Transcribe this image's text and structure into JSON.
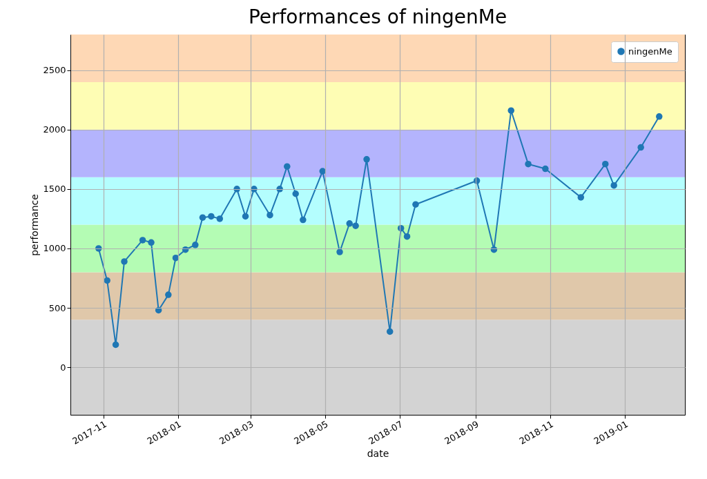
{
  "chart_data": {
    "type": "line",
    "title": "Performances of ningenMe",
    "xlabel": "date",
    "ylabel": "performance",
    "x": [
      "2017-10-28",
      "2017-11-04",
      "2017-11-11",
      "2017-11-18",
      "2017-12-03",
      "2017-12-10",
      "2017-12-16",
      "2017-12-24",
      "2017-12-30",
      "2018-01-07",
      "2018-01-15",
      "2018-01-21",
      "2018-01-28",
      "2018-02-04",
      "2018-02-18",
      "2018-02-25",
      "2018-03-04",
      "2018-03-17",
      "2018-03-25",
      "2018-03-31",
      "2018-04-07",
      "2018-04-13",
      "2018-04-29",
      "2018-05-13",
      "2018-05-21",
      "2018-05-26",
      "2018-06-04",
      "2018-06-23",
      "2018-07-02",
      "2018-07-07",
      "2018-07-14",
      "2018-09-02",
      "2018-09-16",
      "2018-09-30",
      "2018-10-14",
      "2018-10-28",
      "2018-11-26",
      "2018-12-16",
      "2018-12-23",
      "2019-01-14",
      "2019-01-29"
    ],
    "series": [
      {
        "name": "ningenMe",
        "color": "#1f77b4",
        "values": [
          1000,
          730,
          190,
          890,
          1070,
          1050,
          480,
          610,
          920,
          990,
          1030,
          1260,
          1270,
          1250,
          1500,
          1270,
          1500,
          1280,
          1500,
          1690,
          1460,
          1240,
          1650,
          970,
          1210,
          1190,
          1750,
          300,
          1170,
          1100,
          1370,
          1570,
          990,
          2160,
          1710,
          1670,
          1430,
          1710,
          1530,
          1850,
          2110
        ]
      }
    ],
    "xlim": [
      "2017-10-05",
      "2019-02-19"
    ],
    "xticks": [
      "2017-11",
      "2018-01",
      "2018-03",
      "2018-05",
      "2018-07",
      "2018-09",
      "2018-11",
      "2019-01"
    ],
    "ylim": [
      -400,
      2800
    ],
    "yticks": [
      0,
      500,
      1000,
      1500,
      2000,
      2500
    ],
    "bands": [
      {
        "axis": "y",
        "from": -400,
        "to": 400,
        "color": "#d3d3d3"
      },
      {
        "axis": "y",
        "from": 400,
        "to": 800,
        "color": "#e0c8aa"
      },
      {
        "axis": "y",
        "from": 800,
        "to": 1200,
        "color": "#b4fcb4"
      },
      {
        "axis": "y",
        "from": 1200,
        "to": 1600,
        "color": "#b4fefe"
      },
      {
        "axis": "y",
        "from": 1600,
        "to": 2000,
        "color": "#b4b4fd"
      },
      {
        "axis": "y",
        "from": 2000,
        "to": 2400,
        "color": "#fefdb4"
      },
      {
        "axis": "y",
        "from": 2400,
        "to": 2800,
        "color": "#fed8b5"
      }
    ],
    "grid": true,
    "legend": "top right",
    "marker": "circle",
    "line_style": "solid"
  }
}
